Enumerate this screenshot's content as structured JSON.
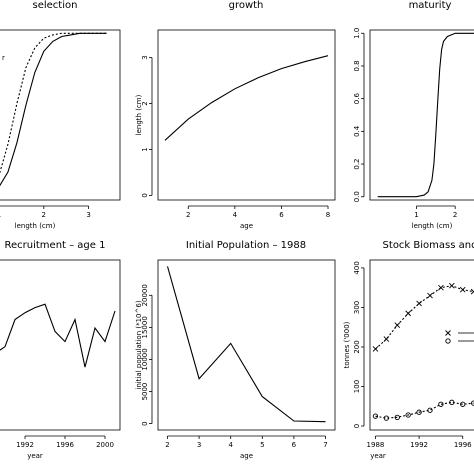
{
  "chart_data": [
    {
      "id": "selection",
      "type": "line",
      "title": "selection",
      "xlabel": "length (cm)",
      "ylabel": "",
      "xlim": [
        0.8,
        3.7
      ],
      "ylim": [
        -0.02,
        1.02
      ],
      "x_ticks": [
        1,
        2,
        3
      ],
      "y_ticks": [],
      "annotations": [
        "r"
      ],
      "series": [
        {
          "style": "solid",
          "x": [
            0.8,
            1.0,
            1.2,
            1.4,
            1.6,
            1.8,
            2.0,
            2.2,
            2.4,
            2.6,
            2.8,
            3.0,
            3.2,
            3.4
          ],
          "y": [
            0.02,
            0.06,
            0.15,
            0.33,
            0.56,
            0.76,
            0.89,
            0.95,
            0.98,
            0.99,
            1.0,
            1.0,
            1.0,
            1.0
          ]
        },
        {
          "style": "dashed",
          "x": [
            0.8,
            1.0,
            1.2,
            1.4,
            1.6,
            1.8,
            2.0,
            2.2,
            2.4,
            2.6,
            2.8,
            3.0,
            3.2,
            3.4
          ],
          "y": [
            0.04,
            0.13,
            0.32,
            0.57,
            0.79,
            0.91,
            0.97,
            0.99,
            1.0,
            1.0,
            1.0,
            1.0,
            1.0,
            1.0
          ]
        }
      ]
    },
    {
      "id": "growth",
      "type": "line",
      "title": "growth",
      "xlabel": "age",
      "ylabel": "length (cm)",
      "xlim": [
        0.7,
        8.3
      ],
      "ylim": [
        -0.1,
        3.6
      ],
      "x_ticks": [
        2,
        4,
        6,
        8
      ],
      "y_ticks": [
        0,
        1,
        2,
        3
      ],
      "series": [
        {
          "style": "solid",
          "x": [
            1,
            2,
            3,
            4,
            5,
            6,
            7,
            8
          ],
          "y": [
            1.2,
            1.66,
            2.02,
            2.32,
            2.56,
            2.76,
            2.91,
            3.04
          ]
        }
      ]
    },
    {
      "id": "maturity",
      "type": "line",
      "title": "maturity",
      "xlabel": "length (cm)",
      "ylabel": "",
      "xlim": [
        -0.2,
        2.9
      ],
      "ylim": [
        -0.02,
        1.02
      ],
      "x_ticks": [
        1,
        2
      ],
      "y_ticks": [
        0.0,
        0.2,
        0.4,
        0.6,
        0.8,
        1.0
      ],
      "y_tick_labels": [
        "0.0",
        "0.2",
        "0.4",
        "0.6",
        "0.8",
        "1.0"
      ],
      "series": [
        {
          "style": "solid",
          "x": [
            0.0,
            0.5,
            1.0,
            1.2,
            1.3,
            1.4,
            1.45,
            1.5,
            1.55,
            1.6,
            1.65,
            1.7,
            1.8,
            1.9,
            2.0,
            2.5,
            2.9
          ],
          "y": [
            0.0,
            0.0,
            0.0,
            0.01,
            0.03,
            0.1,
            0.2,
            0.38,
            0.58,
            0.78,
            0.9,
            0.95,
            0.98,
            0.99,
            1.0,
            1.0,
            1.0
          ]
        }
      ]
    },
    {
      "id": "recruitment",
      "type": "line",
      "title": "Recruitment – age 1",
      "xlabel": "year",
      "ylabel": "",
      "xlim": [
        1988.5,
        2001.5
      ],
      "ylim": [
        0,
        100
      ],
      "x_ticks": [
        1992,
        1996,
        2000
      ],
      "x_tick_labels": [
        "1992",
        "1996",
        "2000"
      ],
      "y_ticks": [],
      "series": [
        {
          "style": "solid",
          "x": [
            1989,
            1990,
            1991,
            1992,
            1993,
            1994,
            1995,
            1996,
            1997,
            1998,
            1999,
            2000,
            2001
          ],
          "y": [
            45,
            49,
            65,
            69,
            72,
            74,
            58,
            52,
            65,
            37,
            60,
            52,
            70
          ]
        }
      ]
    },
    {
      "id": "initial-population",
      "type": "line",
      "title": "Initial Population – 1988",
      "xlabel": "age",
      "ylabel": "initial population (*10^6)",
      "xlim": [
        1.7,
        7.3
      ],
      "ylim": [
        -1000,
        25500
      ],
      "x_ticks": [
        2,
        3,
        4,
        5,
        6,
        7
      ],
      "y_ticks": [
        0,
        5000,
        10000,
        15000,
        20000
      ],
      "y_tick_labels": [
        "0",
        "5000",
        "10000",
        "15000",
        "20000"
      ],
      "series": [
        {
          "style": "solid",
          "x": [
            2,
            3,
            4,
            5,
            6,
            7
          ],
          "y": [
            24500,
            7000,
            12500,
            4200,
            400,
            300
          ]
        }
      ]
    },
    {
      "id": "stock-biomass",
      "type": "line",
      "title": "Stock Biomass and",
      "xlabel": "year",
      "ylabel": "tonnes ('000)",
      "xlim": [
        1987.5,
        1998.5
      ],
      "ylim": [
        -10,
        420
      ],
      "x_ticks": [
        1988,
        1992,
        1996
      ],
      "x_tick_labels": [
        "1988",
        "1992",
        "1996"
      ],
      "y_ticks": [
        0,
        100,
        200,
        300,
        400
      ],
      "y_tick_labels": [
        "0",
        "100",
        "200",
        "300",
        "400"
      ],
      "legend": {
        "placement": "right",
        "markers": [
          "x",
          "o"
        ]
      },
      "series": [
        {
          "style": "dashed",
          "marker": "x",
          "x": [
            1988,
            1989,
            1990,
            1991,
            1992,
            1993,
            1994,
            1995,
            1996,
            1997
          ],
          "y": [
            195,
            220,
            255,
            285,
            310,
            330,
            350,
            355,
            345,
            340
          ]
        },
        {
          "style": "dashed",
          "marker": "o",
          "x": [
            1988,
            1989,
            1990,
            1991,
            1992,
            1993,
            1994,
            1995,
            1996,
            1997
          ],
          "y": [
            25,
            20,
            22,
            28,
            35,
            40,
            55,
            60,
            55,
            58
          ]
        }
      ]
    }
  ]
}
